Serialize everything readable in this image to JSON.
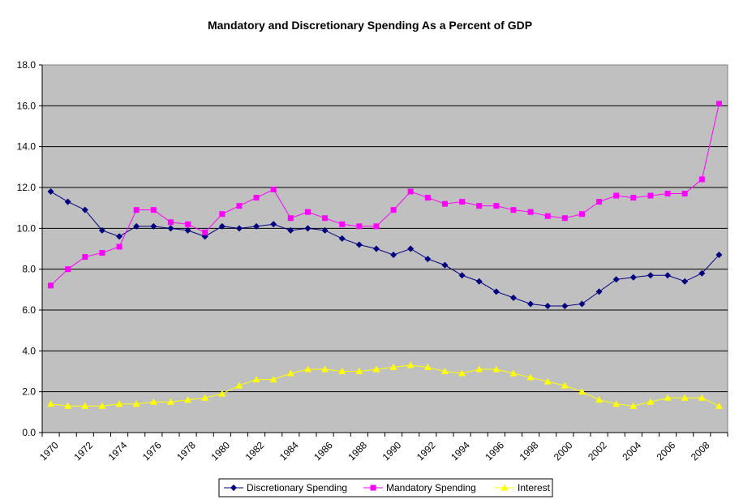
{
  "chart_data": {
    "type": "line",
    "title": "Mandatory and Discretionary Spending As a Percent of GDP",
    "xlabel": "",
    "ylabel": "",
    "ylim": [
      0,
      18
    ],
    "y_ticks": [
      "0.0",
      "2.0",
      "4.0",
      "6.0",
      "8.0",
      "10.0",
      "12.0",
      "14.0",
      "16.0",
      "18.0"
    ],
    "grid": true,
    "legend_position": "bottom",
    "plot_background": "#C0C0C0",
    "x": [
      1970,
      1971,
      1972,
      1973,
      1974,
      1975,
      1976,
      1977,
      1978,
      1979,
      1980,
      1981,
      1982,
      1983,
      1984,
      1985,
      1986,
      1987,
      1988,
      1989,
      1990,
      1991,
      1992,
      1993,
      1994,
      1995,
      1996,
      1997,
      1998,
      1999,
      2000,
      2001,
      2002,
      2003,
      2004,
      2005,
      2006,
      2007,
      2008,
      2009
    ],
    "x_tick_labels": [
      "1970",
      "1972",
      "1974",
      "1976",
      "1978",
      "1980",
      "1982",
      "1984",
      "1986",
      "1988",
      "1990",
      "1992",
      "1994",
      "1996",
      "1998",
      "2000",
      "2002",
      "2004",
      "2006",
      "2008"
    ],
    "series": [
      {
        "name": "Discretionary Spending",
        "color": "#000080",
        "marker": "diamond",
        "values": [
          11.8,
          11.3,
          10.9,
          9.9,
          9.6,
          10.1,
          10.1,
          10.0,
          9.9,
          9.6,
          10.1,
          10.0,
          10.1,
          10.2,
          9.9,
          10.0,
          9.9,
          9.5,
          9.2,
          9.0,
          8.7,
          9.0,
          8.5,
          8.2,
          7.7,
          7.4,
          6.9,
          6.6,
          6.3,
          6.2,
          6.2,
          6.3,
          6.9,
          7.5,
          7.6,
          7.7,
          7.7,
          7.4,
          7.8,
          8.7
        ]
      },
      {
        "name": "Mandatory Spending",
        "color": "#FF00FF",
        "marker": "square",
        "values": [
          7.2,
          8.0,
          8.6,
          8.8,
          9.1,
          10.9,
          10.9,
          10.3,
          10.2,
          9.8,
          10.7,
          11.1,
          11.5,
          11.9,
          10.5,
          10.8,
          10.5,
          10.2,
          10.1,
          10.1,
          10.9,
          11.8,
          11.5,
          11.2,
          11.3,
          11.1,
          11.1,
          10.9,
          10.8,
          10.6,
          10.5,
          10.7,
          11.3,
          11.6,
          11.5,
          11.6,
          11.7,
          11.7,
          12.4,
          16.1
        ]
      },
      {
        "name": "Interest",
        "color": "#FFFF00",
        "marker": "triangle",
        "values": [
          1.4,
          1.3,
          1.3,
          1.3,
          1.4,
          1.4,
          1.5,
          1.5,
          1.6,
          1.7,
          1.9,
          2.3,
          2.6,
          2.6,
          2.9,
          3.1,
          3.1,
          3.0,
          3.0,
          3.1,
          3.2,
          3.3,
          3.2,
          3.0,
          2.9,
          3.1,
          3.1,
          2.9,
          2.7,
          2.5,
          2.3,
          2.0,
          1.6,
          1.4,
          1.3,
          1.5,
          1.7,
          1.7,
          1.7,
          1.3
        ]
      }
    ]
  }
}
